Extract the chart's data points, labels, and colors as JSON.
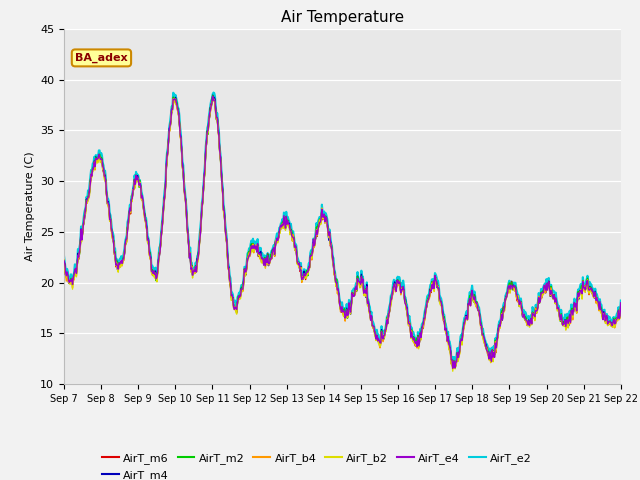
{
  "title": "Air Temperature",
  "ylabel": "Air Temperature (C)",
  "ylim": [
    10,
    45
  ],
  "bg_color": "#f2f2f2",
  "plot_bg": "#e8e8e8",
  "series_colors": {
    "AirT_m6": "#dd0000",
    "AirT_m4": "#0000bb",
    "AirT_m2": "#00cc00",
    "AirT_b4": "#ff9900",
    "AirT_b2": "#dddd00",
    "AirT_e4": "#9900cc",
    "AirT_e2": "#00ccdd"
  },
  "xtick_labels": [
    "Sep 7",
    "Sep 8",
    "Sep 9",
    "Sep 10",
    "Sep 11",
    "Sep 12",
    "Sep 13",
    "Sep 14",
    "Sep 15",
    "Sep 16",
    "Sep 17",
    "Sep 18",
    "Sep 19",
    "Sep 20",
    "Sep 21",
    "Sep 22"
  ],
  "annotation_text": "BA_adex"
}
